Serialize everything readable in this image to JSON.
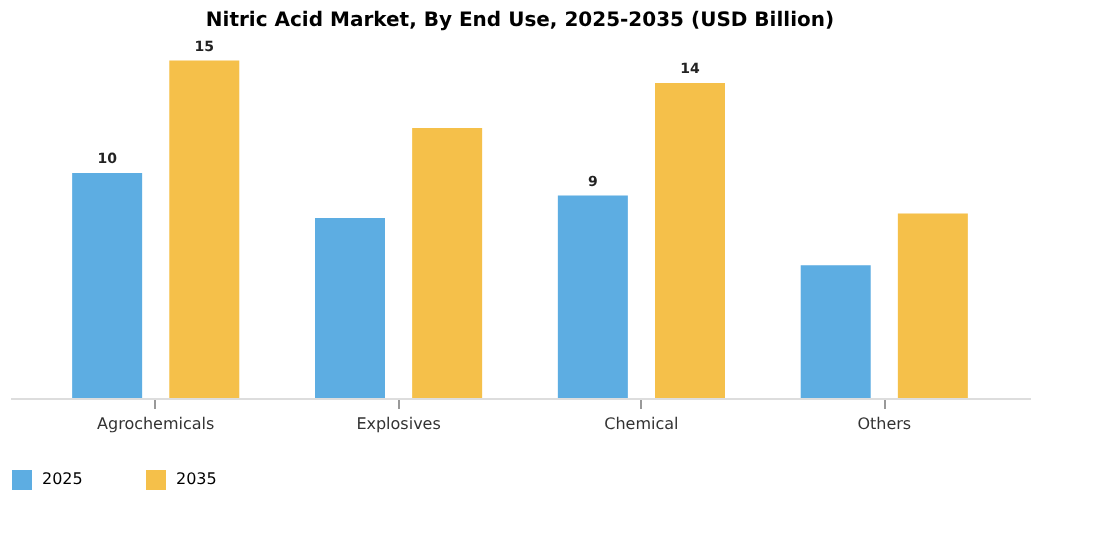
{
  "chart_data": {
    "type": "bar",
    "title": "Nitric Acid Market, By End Use, 2025-2035 (USD Billion)",
    "categories": [
      "Agrochemicals",
      "Explosives",
      "Chemical",
      "Others"
    ],
    "series": [
      {
        "name": "2025",
        "color": "#5dade2",
        "values": [
          10,
          8,
          9,
          5.9
        ],
        "value_labels": [
          "10",
          null,
          "9",
          null
        ]
      },
      {
        "name": "2035",
        "color": "#f5c04a",
        "values": [
          15,
          12,
          14,
          8.2
        ],
        "value_labels": [
          "15",
          null,
          "14",
          null
        ]
      }
    ],
    "grid": false,
    "legend": "bottom",
    "tick_labels": "x"
  }
}
